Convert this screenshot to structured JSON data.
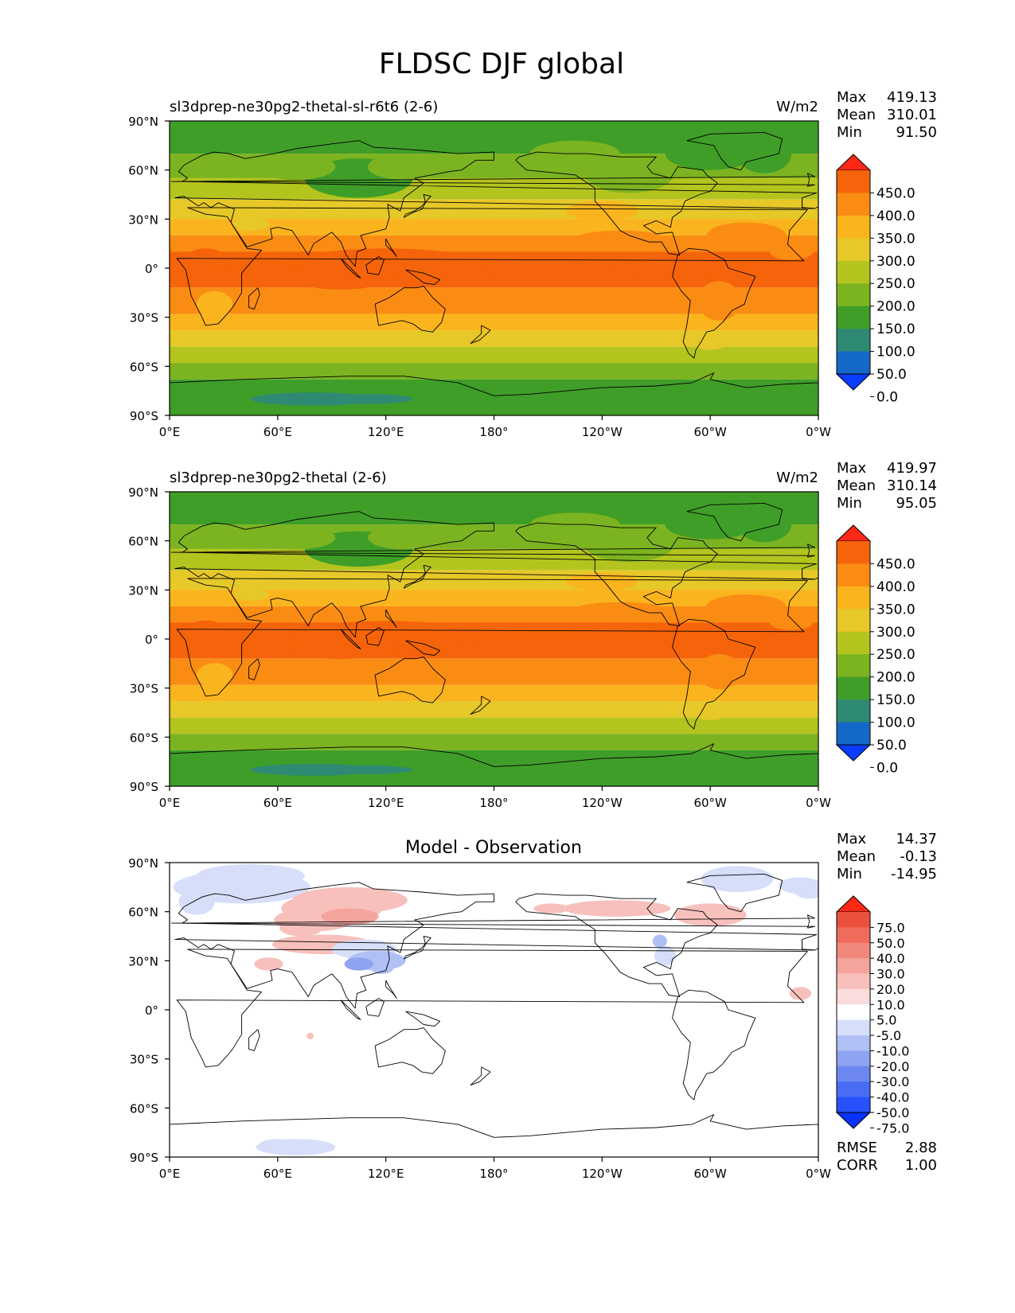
{
  "figure": {
    "title": "FLDSC DJF global"
  },
  "colors": {
    "levels_main": [
      "#0a3cff",
      "#1468c8",
      "#2e8a73",
      "#3f9e28",
      "#7cb320",
      "#b4c41e",
      "#e6c828",
      "#fab41e",
      "#fa8c14",
      "#f5640a",
      "#ff2814"
    ],
    "levels_diff": [
      "#0a32ff",
      "#2850ff",
      "#4a6cf5",
      "#6c88f0",
      "#8ea4f0",
      "#b0c0f5",
      "#d6defa",
      "#ffffff",
      "#fadcdc",
      "#f8c0bc",
      "#f5a49c",
      "#f2887c",
      "#ef6c5c",
      "#eb503c",
      "#ff2814"
    ],
    "land_lines": "#000000"
  },
  "chart_data": [
    {
      "type": "heatmap",
      "subtitle": "sl3dprep-ne30pg2-thetal-sl-r6t6 (2-6)",
      "units": "W/m2",
      "stats": {
        "max_label": "Max",
        "max": "419.13",
        "mean_label": "Mean",
        "mean": "310.01",
        "min_label": "Min",
        "min": "91.50"
      },
      "x_ticks": [
        "0°E",
        "60°E",
        "120°E",
        "180°",
        "120°W",
        "60°W",
        "0°W"
      ],
      "y_ticks": [
        "90°N",
        "60°N",
        "30°N",
        "0°",
        "30°S",
        "60°S",
        "90°S"
      ],
      "xlim": [
        0,
        360
      ],
      "ylim": [
        -90,
        90
      ],
      "colorbar_levels": [
        "450.0",
        "400.0",
        "350.0",
        "300.0",
        "250.0",
        "200.0",
        "150.0",
        "100.0",
        "50.0",
        "0.0"
      ],
      "colorbar_extend": "both"
    },
    {
      "type": "heatmap",
      "subtitle": "sl3dprep-ne30pg2-thetal (2-6)",
      "units": "W/m2",
      "stats": {
        "max_label": "Max",
        "max": "419.97",
        "mean_label": "Mean",
        "mean": "310.14",
        "min_label": "Min",
        "min": "95.05"
      },
      "x_ticks": [
        "0°E",
        "60°E",
        "120°E",
        "180°",
        "120°W",
        "60°W",
        "0°W"
      ],
      "y_ticks": [
        "90°N",
        "60°N",
        "30°N",
        "0°",
        "30°S",
        "60°S",
        "90°S"
      ],
      "xlim": [
        0,
        360
      ],
      "ylim": [
        -90,
        90
      ],
      "colorbar_levels": [
        "450.0",
        "400.0",
        "350.0",
        "300.0",
        "250.0",
        "200.0",
        "150.0",
        "100.0",
        "50.0",
        "0.0"
      ],
      "colorbar_extend": "both"
    },
    {
      "type": "heatmap",
      "title": "Model - Observation",
      "stats": {
        "max_label": "Max",
        "max": "14.37",
        "mean_label": "Mean",
        "mean": "-0.13",
        "min_label": "Min",
        "min": "-14.95"
      },
      "x_ticks": [
        "0°E",
        "60°E",
        "120°E",
        "180°",
        "120°W",
        "60°W",
        "0°W"
      ],
      "y_ticks": [
        "90°N",
        "60°N",
        "30°N",
        "0°",
        "30°S",
        "60°S",
        "90°S"
      ],
      "xlim": [
        0,
        360
      ],
      "ylim": [
        -90,
        90
      ],
      "colorbar_levels": [
        "75.0",
        "50.0",
        "40.0",
        "30.0",
        "20.0",
        "10.0",
        "5.0",
        "-5.0",
        "-10.0",
        "-20.0",
        "-30.0",
        "-40.0",
        "-50.0",
        "-75.0"
      ],
      "colorbar_extend": "both",
      "metrics": {
        "rmse_label": "RMSE",
        "rmse": "2.88",
        "corr_label": "CORR",
        "corr": "1.00"
      }
    }
  ]
}
